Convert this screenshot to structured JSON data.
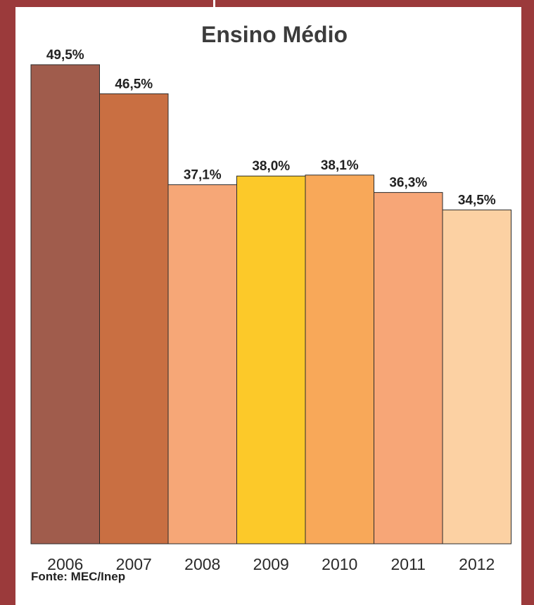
{
  "chart_data": {
    "type": "bar",
    "title": "Ensino Médio",
    "categories": [
      "2006",
      "2007",
      "2008",
      "2009",
      "2010",
      "2011",
      "2012"
    ],
    "values": [
      49.5,
      46.5,
      37.1,
      38.0,
      38.1,
      36.3,
      34.5
    ],
    "value_labels": [
      "49,5%",
      "46,5%",
      "37,1%",
      "38,0%",
      "38,1%",
      "36,3%",
      "34,5%"
    ],
    "bar_colors": [
      "#a05c4c",
      "#c96f42",
      "#f6a777",
      "#fcc929",
      "#f8a859",
      "#f7a677",
      "#fcd1a3"
    ],
    "ylim": [
      0,
      49.5
    ],
    "grid": false,
    "legend": "none",
    "source": "Fonte: MEC/Inep"
  },
  "colors": {
    "background": "#9b3a3b",
    "panel": "#ffffff"
  }
}
